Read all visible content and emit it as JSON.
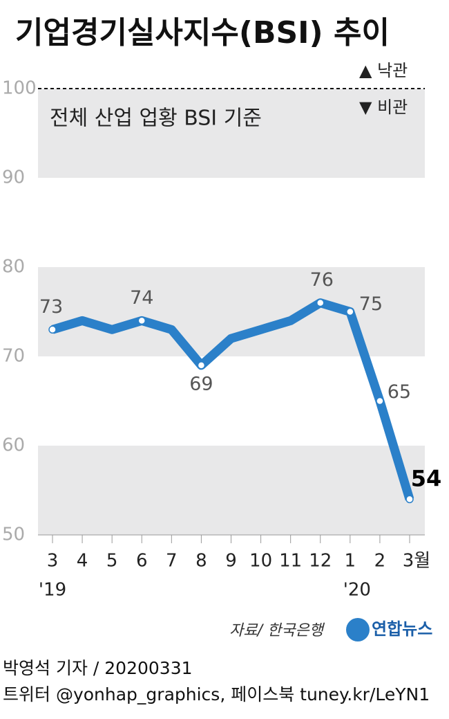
{
  "chart_data": {
    "type": "line",
    "title": "기업경기실사지수(BSI) 추이",
    "subtitle": "전체 산업 업황 BSI 기준",
    "legend": [
      "▲ 낙관",
      "▼ 비관"
    ],
    "categories": [
      "3",
      "4",
      "5",
      "6",
      "7",
      "8",
      "9",
      "10",
      "11",
      "12",
      "1",
      "2",
      "3월"
    ],
    "year_labels": [
      "'19",
      "'20"
    ],
    "series": [
      {
        "name": "BSI",
        "color": "#2b80c9",
        "values": [
          73,
          74,
          73,
          74,
          73,
          69,
          72,
          73,
          74,
          76,
          75,
          65,
          54
        ],
        "value_labels": [
          "73",
          null,
          null,
          "74",
          null,
          "69",
          null,
          null,
          null,
          "76",
          "75",
          "65",
          "54"
        ]
      }
    ],
    "ylim": [
      50,
      100
    ],
    "yticks": [
      50,
      60,
      70,
      80,
      90,
      100
    ],
    "grid": true,
    "source": "자료/ 한국은행",
    "logo": "연합뉴스",
    "byline": "박영석 기자 /  20200331",
    "social": "트위터 @yonhap_graphics, 페이스북 tuney.kr/LeYN1"
  }
}
